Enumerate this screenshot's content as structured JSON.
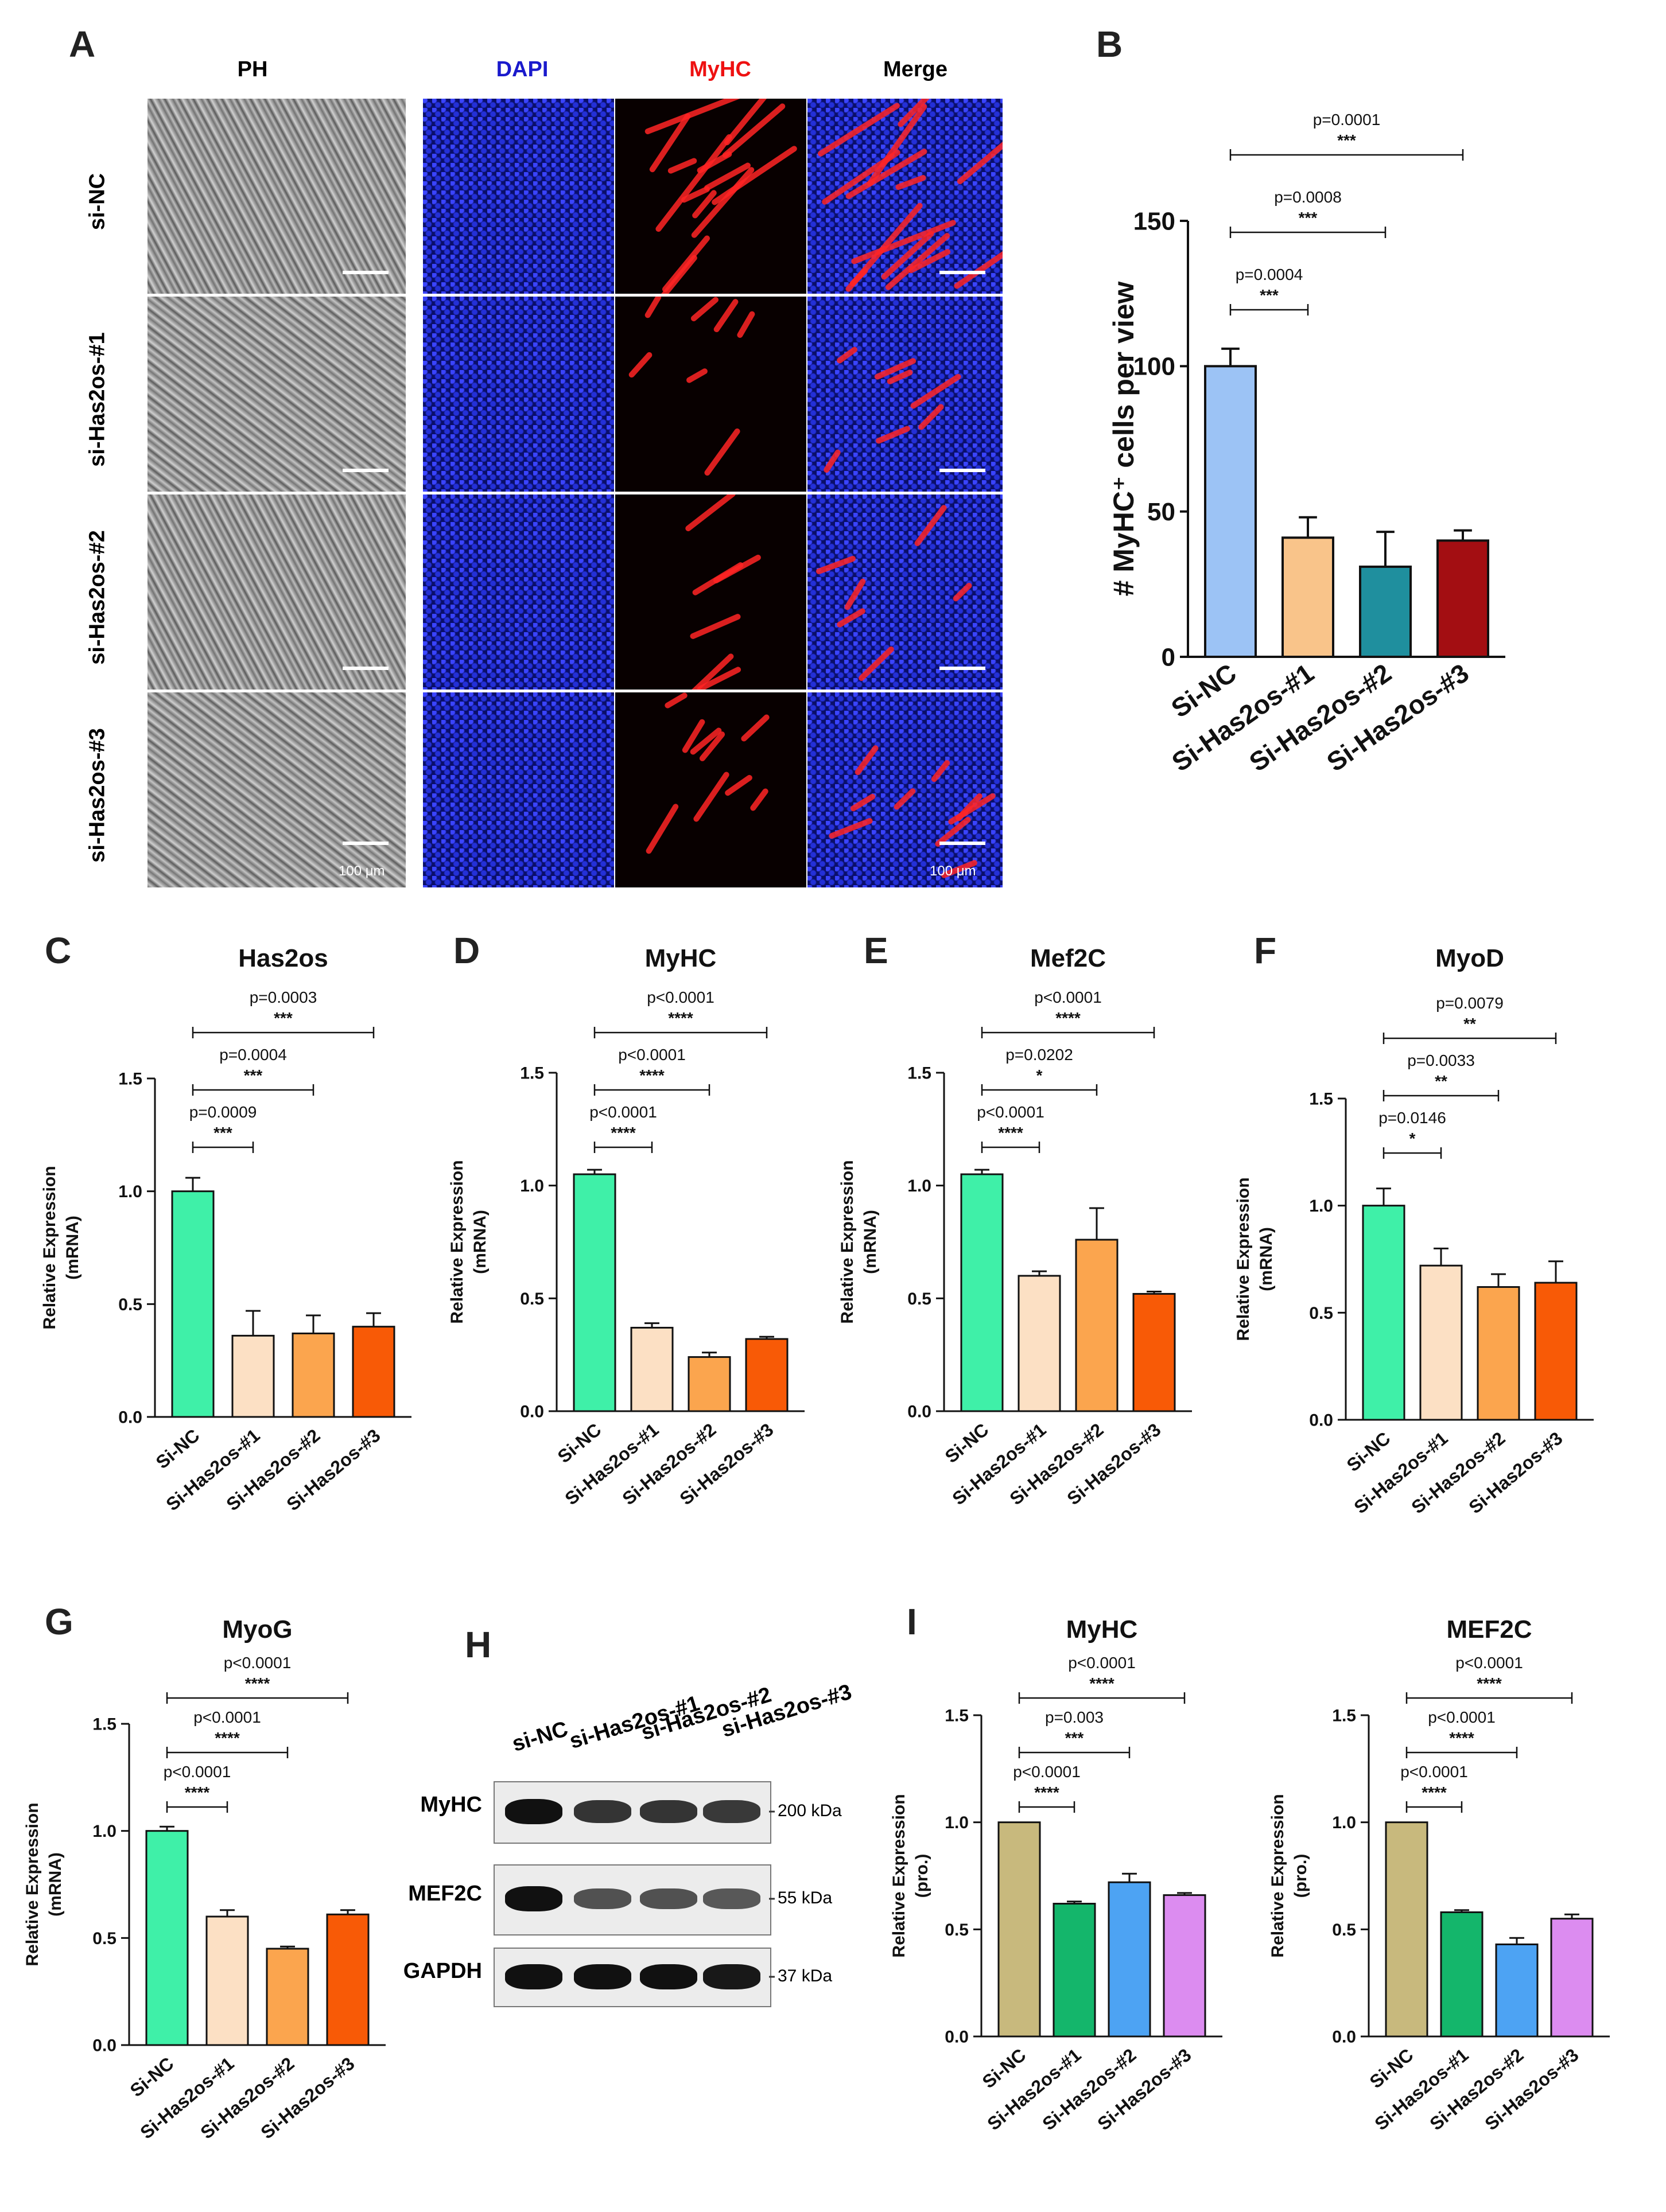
{
  "panels": {
    "A": "A",
    "B": "B",
    "C": "C",
    "D": "D",
    "E": "E",
    "F": "F",
    "G": "G",
    "H": "H",
    "I": "I"
  },
  "panel_a": {
    "columns": [
      "PH",
      "DAPI",
      "MyHC",
      "Merge"
    ],
    "column_colors": [
      "#000000",
      "#1a1acc",
      "#ee1111",
      "#000000"
    ],
    "rows": [
      "si-NC",
      "si-Has2os-#1",
      "si-Has2os-#2",
      "si-Has2os-#3"
    ],
    "scale_text": "100 μm"
  },
  "panel_h": {
    "lanes": [
      "si-NC",
      "si-Has2os-#1",
      "si-Has2os-#2",
      "si-Has2os-#3"
    ],
    "rows": [
      {
        "label": "MyHC",
        "kda": "200 kDa",
        "intensity": [
          1.0,
          0.75,
          0.75,
          0.72
        ]
      },
      {
        "label": "MEF2C",
        "kda": "55 kDa",
        "intensity": [
          1.0,
          0.55,
          0.55,
          0.5
        ]
      },
      {
        "label": "GAPDH",
        "kda": "37 kDa",
        "intensity": [
          1.0,
          1.0,
          1.0,
          0.95
        ]
      }
    ]
  },
  "chart_data": [
    {
      "id": "B",
      "type": "bar",
      "title": "",
      "categories": [
        "Si-NC",
        "Si-Has2os-#1",
        "Si-Has2os-#2",
        "Si-Has2os-#3"
      ],
      "values": [
        100,
        41,
        31,
        40
      ],
      "errors": [
        6,
        7,
        12,
        3.5
      ],
      "colors": [
        "#9cc3f5",
        "#f9c48a",
        "#1f8f9e",
        "#a30e12"
      ],
      "ylabel": "# MyHC⁺ cells per view",
      "xlabel": "",
      "ylim": [
        0,
        150
      ],
      "yticks": [
        0,
        50,
        100,
        150
      ],
      "ytick_labels": [
        "0",
        "50",
        "100",
        "150"
      ],
      "comparisons": [
        {
          "to": 1,
          "p": "p=0.0004",
          "stars": "***"
        },
        {
          "to": 2,
          "p": "p=0.0008",
          "stars": "***"
        },
        {
          "to": 3,
          "p": "p=0.0001",
          "stars": "***"
        }
      ]
    },
    {
      "id": "C",
      "type": "bar",
      "title": "Has2os",
      "categories": [
        "Si-NC",
        "Si-Has2os-#1",
        "Si-Has2os-#2",
        "Si-Has2os-#3"
      ],
      "values": [
        1.0,
        0.36,
        0.37,
        0.4
      ],
      "errors": [
        0.06,
        0.11,
        0.08,
        0.06
      ],
      "colors": [
        "#3ff0a8",
        "#fce0c4",
        "#fba54e",
        "#f85a06"
      ],
      "ylabel": "Relative Expression",
      "ylabel2": "(mRNA)",
      "ylim": [
        0,
        1.5
      ],
      "yticks": [
        0,
        0.5,
        1.0,
        1.5
      ],
      "ytick_labels": [
        "0.0",
        "0.5",
        "1.0",
        "1.5"
      ],
      "comparisons": [
        {
          "to": 1,
          "p": "p=0.0009",
          "stars": "***"
        },
        {
          "to": 2,
          "p": "p=0.0004",
          "stars": "***"
        },
        {
          "to": 3,
          "p": "p=0.0003",
          "stars": "***"
        }
      ]
    },
    {
      "id": "D",
      "type": "bar",
      "title": "MyHC",
      "categories": [
        "Si-NC",
        "Si-Has2os-#1",
        "Si-Has2os-#2",
        "Si-Has2os-#3"
      ],
      "values": [
        1.05,
        0.37,
        0.24,
        0.32
      ],
      "errors": [
        0.02,
        0.02,
        0.02,
        0.01
      ],
      "colors": [
        "#3ff0a8",
        "#fce0c4",
        "#fba54e",
        "#f85a06"
      ],
      "ylabel": "Relative Expression",
      "ylabel2": "(mRNA)",
      "ylim": [
        0,
        1.5
      ],
      "yticks": [
        0,
        0.5,
        1.0,
        1.5
      ],
      "ytick_labels": [
        "0.0",
        "0.5",
        "1.0",
        "1.5"
      ],
      "comparisons": [
        {
          "to": 1,
          "p": "p<0.0001",
          "stars": "****"
        },
        {
          "to": 2,
          "p": "p<0.0001",
          "stars": "****"
        },
        {
          "to": 3,
          "p": "p<0.0001",
          "stars": "****"
        }
      ]
    },
    {
      "id": "E",
      "type": "bar",
      "title": "Mef2C",
      "categories": [
        "Si-NC",
        "Si-Has2os-#1",
        "Si-Has2os-#2",
        "Si-Has2os-#3"
      ],
      "values": [
        1.05,
        0.6,
        0.76,
        0.52
      ],
      "errors": [
        0.02,
        0.02,
        0.14,
        0.01
      ],
      "colors": [
        "#3ff0a8",
        "#fce0c4",
        "#fba54e",
        "#f85a06"
      ],
      "ylabel": "Relative Expression",
      "ylabel2": "(mRNA)",
      "ylim": [
        0,
        1.5
      ],
      "yticks": [
        0,
        0.5,
        1.0,
        1.5
      ],
      "ytick_labels": [
        "0.0",
        "0.5",
        "1.0",
        "1.5"
      ],
      "comparisons": [
        {
          "to": 1,
          "p": "p<0.0001",
          "stars": "****"
        },
        {
          "to": 2,
          "p": "p=0.0202",
          "stars": "*"
        },
        {
          "to": 3,
          "p": "p<0.0001",
          "stars": "****"
        }
      ]
    },
    {
      "id": "F",
      "type": "bar",
      "title": "MyoD",
      "categories": [
        "Si-NC",
        "Si-Has2os-#1",
        "Si-Has2os-#2",
        "Si-Has2os-#3"
      ],
      "values": [
        1.0,
        0.72,
        0.62,
        0.64
      ],
      "errors": [
        0.08,
        0.08,
        0.06,
        0.1
      ],
      "colors": [
        "#3ff0a8",
        "#fce0c4",
        "#fba54e",
        "#f85a06"
      ],
      "ylabel": "Relative Expression",
      "ylabel2": "(mRNA)",
      "ylim": [
        0,
        1.5
      ],
      "yticks": [
        0,
        0.5,
        1.0,
        1.5
      ],
      "ytick_labels": [
        "0.0",
        "0.5",
        "1.0",
        "1.5"
      ],
      "comparisons": [
        {
          "to": 1,
          "p": "p=0.0146",
          "stars": "*"
        },
        {
          "to": 2,
          "p": "p=0.0033",
          "stars": "**"
        },
        {
          "to": 3,
          "p": "p=0.0079",
          "stars": "**"
        }
      ]
    },
    {
      "id": "G",
      "type": "bar",
      "title": "MyoG",
      "categories": [
        "Si-NC",
        "Si-Has2os-#1",
        "Si-Has2os-#2",
        "Si-Has2os-#3"
      ],
      "values": [
        1.0,
        0.6,
        0.45,
        0.61
      ],
      "errors": [
        0.02,
        0.03,
        0.01,
        0.02
      ],
      "colors": [
        "#3ff0a8",
        "#fce0c4",
        "#fba54e",
        "#f85a06"
      ],
      "ylabel": "Relative Expression",
      "ylabel2": "(mRNA)",
      "ylim": [
        0,
        1.5
      ],
      "yticks": [
        0,
        0.5,
        1.0,
        1.5
      ],
      "ytick_labels": [
        "0.0",
        "0.5",
        "1.0",
        "1.5"
      ],
      "comparisons": [
        {
          "to": 1,
          "p": "p<0.0001",
          "stars": "****"
        },
        {
          "to": 2,
          "p": "p<0.0001",
          "stars": "****"
        },
        {
          "to": 3,
          "p": "p<0.0001",
          "stars": "****"
        }
      ]
    },
    {
      "id": "I1",
      "type": "bar",
      "title": "MyHC",
      "categories": [
        "Si-NC",
        "Si-Has2os-#1",
        "Si-Has2os-#2",
        "Si-Has2os-#3"
      ],
      "values": [
        1.0,
        0.62,
        0.72,
        0.66
      ],
      "errors": [
        0,
        0.01,
        0.04,
        0.01
      ],
      "colors": [
        "#c8b97d",
        "#14b66b",
        "#4da3f3",
        "#dc8cf0"
      ],
      "ylabel": "Relative Expression",
      "ylabel2": "(pro.)",
      "ylim": [
        0,
        1.5
      ],
      "yticks": [
        0,
        0.5,
        1.0,
        1.5
      ],
      "ytick_labels": [
        "0.0",
        "0.5",
        "1.0",
        "1.5"
      ],
      "comparisons": [
        {
          "to": 1,
          "p": "p<0.0001",
          "stars": "****"
        },
        {
          "to": 2,
          "p": "p=0.003",
          "stars": "***"
        },
        {
          "to": 3,
          "p": "p<0.0001",
          "stars": "****"
        }
      ]
    },
    {
      "id": "I2",
      "type": "bar",
      "title": "MEF2C",
      "categories": [
        "Si-NC",
        "Si-Has2os-#1",
        "Si-Has2os-#2",
        "Si-Has2os-#3"
      ],
      "values": [
        1.0,
        0.58,
        0.43,
        0.55
      ],
      "errors": [
        0,
        0.01,
        0.03,
        0.02
      ],
      "colors": [
        "#c8b97d",
        "#14b66b",
        "#4da3f3",
        "#dc8cf0"
      ],
      "ylabel": "Relative Expression",
      "ylabel2": "(pro.)",
      "ylim": [
        0,
        1.5
      ],
      "yticks": [
        0,
        0.5,
        1.0,
        1.5
      ],
      "ytick_labels": [
        "0.0",
        "0.5",
        "1.0",
        "1.5"
      ],
      "comparisons": [
        {
          "to": 1,
          "p": "p<0.0001",
          "stars": "****"
        },
        {
          "to": 2,
          "p": "p<0.0001",
          "stars": "****"
        },
        {
          "to": 3,
          "p": "p<0.0001",
          "stars": "****"
        }
      ]
    }
  ]
}
